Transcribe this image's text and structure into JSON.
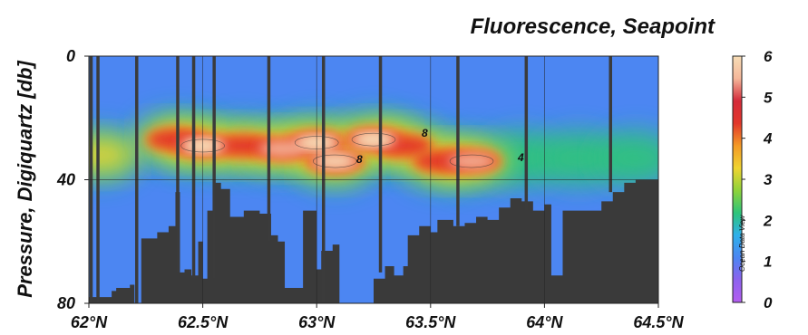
{
  "chart_data": {
    "type": "heatmap",
    "title": "Fluorescence, Seapoint",
    "xlabel": "",
    "ylabel": "Pressure, Digiquartz [db]",
    "x_ticks": [
      "62°N",
      "62.5°N",
      "63°N",
      "63.5°N",
      "64°N",
      "64.5°N"
    ],
    "x_tick_values": [
      62.0,
      62.5,
      63.0,
      63.5,
      64.0,
      64.5
    ],
    "y_ticks": [
      "0",
      "40",
      "80"
    ],
    "y_tick_values": [
      0,
      40,
      80
    ],
    "xlim": [
      62.0,
      64.5
    ],
    "ylim": [
      80,
      0
    ],
    "grid": true,
    "colorbar": {
      "label": "",
      "ticks": [
        "0",
        "1",
        "2",
        "3",
        "4",
        "5",
        "6"
      ],
      "tick_values": [
        0,
        1,
        2,
        3,
        4,
        5,
        6
      ],
      "range": [
        0,
        6
      ],
      "colors": [
        "#b45df0",
        "#8d62ee",
        "#4c86f2",
        "#2fb0ea",
        "#2ec47a",
        "#8fd33a",
        "#f0d430",
        "#f49a26",
        "#e2362a",
        "#d42a3a",
        "#f5b79a",
        "#f7ddb6"
      ]
    },
    "background_value": 1.0,
    "chl_layer": [
      {
        "x": 62.05,
        "depth": 32,
        "value": 3.3
      },
      {
        "x": 62.38,
        "depth": 27,
        "value": 4.6
      },
      {
        "x": 62.5,
        "depth": 29,
        "value": 6.2
      },
      {
        "x": 62.68,
        "depth": 29,
        "value": 5.0
      },
      {
        "x": 62.85,
        "depth": 30,
        "value": 5.4
      },
      {
        "x": 63.0,
        "depth": 28,
        "value": 6.4
      },
      {
        "x": 63.08,
        "depth": 34,
        "value": 6.0
      },
      {
        "x": 63.25,
        "depth": 27,
        "value": 6.2
      },
      {
        "x": 63.38,
        "depth": 29,
        "value": 5.2
      },
      {
        "x": 63.55,
        "depth": 34,
        "value": 4.8
      },
      {
        "x": 63.68,
        "depth": 34,
        "value": 5.8
      },
      {
        "x": 63.9,
        "depth": 33,
        "value": 2.7
      },
      {
        "x": 64.15,
        "depth": 33,
        "value": 2.2
      },
      {
        "x": 64.4,
        "depth": 33,
        "value": 2.0
      }
    ],
    "contour_labels": [
      "8",
      "8",
      "4"
    ],
    "seafloor_depth": [
      {
        "x": 62.0,
        "depth": 78
      },
      {
        "x": 62.07,
        "depth": 78
      },
      {
        "x": 62.1,
        "depth": 76
      },
      {
        "x": 62.12,
        "depth": 75
      },
      {
        "x": 62.18,
        "depth": 74
      },
      {
        "x": 62.2,
        "depth": 80
      },
      {
        "x": 62.23,
        "depth": 59
      },
      {
        "x": 62.3,
        "depth": 57
      },
      {
        "x": 62.35,
        "depth": 55
      },
      {
        "x": 62.38,
        "depth": 44
      },
      {
        "x": 62.4,
        "depth": 70
      },
      {
        "x": 62.42,
        "depth": 69
      },
      {
        "x": 62.45,
        "depth": 71
      },
      {
        "x": 62.48,
        "depth": 60
      },
      {
        "x": 62.5,
        "depth": 72
      },
      {
        "x": 62.52,
        "depth": 50
      },
      {
        "x": 62.55,
        "depth": 41
      },
      {
        "x": 62.58,
        "depth": 43
      },
      {
        "x": 62.62,
        "depth": 52
      },
      {
        "x": 62.68,
        "depth": 50
      },
      {
        "x": 62.75,
        "depth": 51
      },
      {
        "x": 62.8,
        "depth": 58
      },
      {
        "x": 62.83,
        "depth": 60
      },
      {
        "x": 62.86,
        "depth": 75
      },
      {
        "x": 62.93,
        "depth": 75
      },
      {
        "x": 62.94,
        "depth": 50
      },
      {
        "x": 62.99,
        "depth": 50
      },
      {
        "x": 63.0,
        "depth": 69
      },
      {
        "x": 63.02,
        "depth": 63
      },
      {
        "x": 63.07,
        "depth": 61
      },
      {
        "x": 63.1,
        "depth": 81
      },
      {
        "x": 63.24,
        "depth": 81
      },
      {
        "x": 63.25,
        "depth": 72
      },
      {
        "x": 63.3,
        "depth": 68
      },
      {
        "x": 63.33,
        "depth": 68
      },
      {
        "x": 63.34,
        "depth": 71
      },
      {
        "x": 63.38,
        "depth": 68
      },
      {
        "x": 63.4,
        "depth": 58
      },
      {
        "x": 63.45,
        "depth": 55
      },
      {
        "x": 63.5,
        "depth": 57
      },
      {
        "x": 63.53,
        "depth": 53
      },
      {
        "x": 63.6,
        "depth": 55
      },
      {
        "x": 63.65,
        "depth": 54
      },
      {
        "x": 63.7,
        "depth": 52
      },
      {
        "x": 63.75,
        "depth": 53
      },
      {
        "x": 63.8,
        "depth": 49
      },
      {
        "x": 63.85,
        "depth": 46
      },
      {
        "x": 63.9,
        "depth": 47
      },
      {
        "x": 63.95,
        "depth": 50
      },
      {
        "x": 64.0,
        "depth": 48
      },
      {
        "x": 64.03,
        "depth": 71
      },
      {
        "x": 64.07,
        "depth": 71
      },
      {
        "x": 64.08,
        "depth": 50
      },
      {
        "x": 64.2,
        "depth": 50
      },
      {
        "x": 64.25,
        "depth": 47
      },
      {
        "x": 64.3,
        "depth": 44
      },
      {
        "x": 64.35,
        "depth": 41
      },
      {
        "x": 64.4,
        "depth": 40
      },
      {
        "x": 64.5,
        "depth": 40
      }
    ],
    "station_casts": [
      {
        "x": 62.01,
        "max_depth": 80
      },
      {
        "x": 62.04,
        "max_depth": 80
      },
      {
        "x": 62.21,
        "max_depth": 80
      },
      {
        "x": 62.39,
        "max_depth": 70
      },
      {
        "x": 62.46,
        "max_depth": 72
      },
      {
        "x": 62.55,
        "max_depth": 72
      },
      {
        "x": 62.79,
        "max_depth": 60
      },
      {
        "x": 63.03,
        "max_depth": 80
      },
      {
        "x": 63.28,
        "max_depth": 70
      },
      {
        "x": 63.62,
        "max_depth": 55
      },
      {
        "x": 63.92,
        "max_depth": 50
      },
      {
        "x": 64.29,
        "max_depth": 44
      }
    ],
    "watermark": "Ocean Data View"
  }
}
